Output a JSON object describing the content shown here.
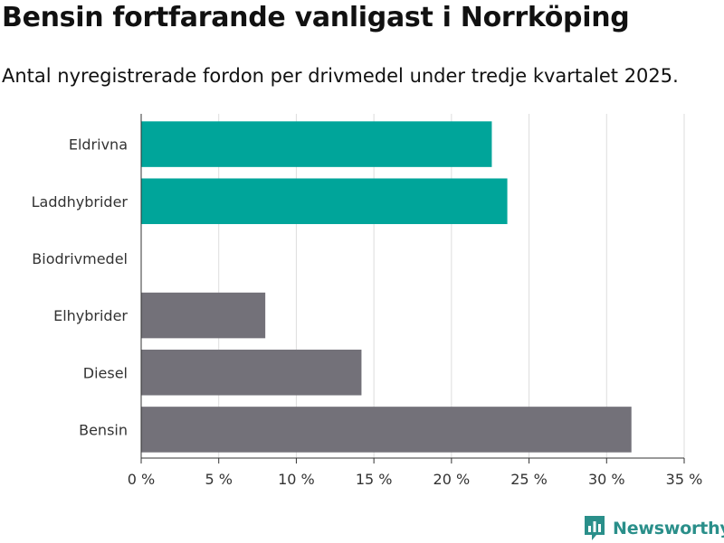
{
  "chart_data": {
    "type": "bar",
    "orientation": "horizontal",
    "title": "Bensin fortfarande vanligast i Norrköping",
    "subtitle": "Antal nyregistrerade fordon per drivmedel under tredje kvartalet 2025.",
    "categories": [
      "Eldrivna",
      "Laddhybrider",
      "Biodrivmedel",
      "Elhybrider",
      "Diesel",
      "Bensin"
    ],
    "values": [
      22.6,
      23.6,
      0,
      8.0,
      14.2,
      31.6
    ],
    "bar_colors": [
      "#00a59a",
      "#00a59a",
      "#737179",
      "#737179",
      "#737179",
      "#737179"
    ],
    "xlabel": "",
    "ylabel": "",
    "xlim": [
      0,
      35
    ],
    "xticks": [
      0,
      5,
      10,
      15,
      20,
      25,
      30,
      35
    ],
    "tick_suffix": " %",
    "grid": true
  },
  "brand": {
    "name": "Newsworthy",
    "logo_icon": "newsworthy-bar-chart-icon",
    "color": "#2a8f8a"
  }
}
